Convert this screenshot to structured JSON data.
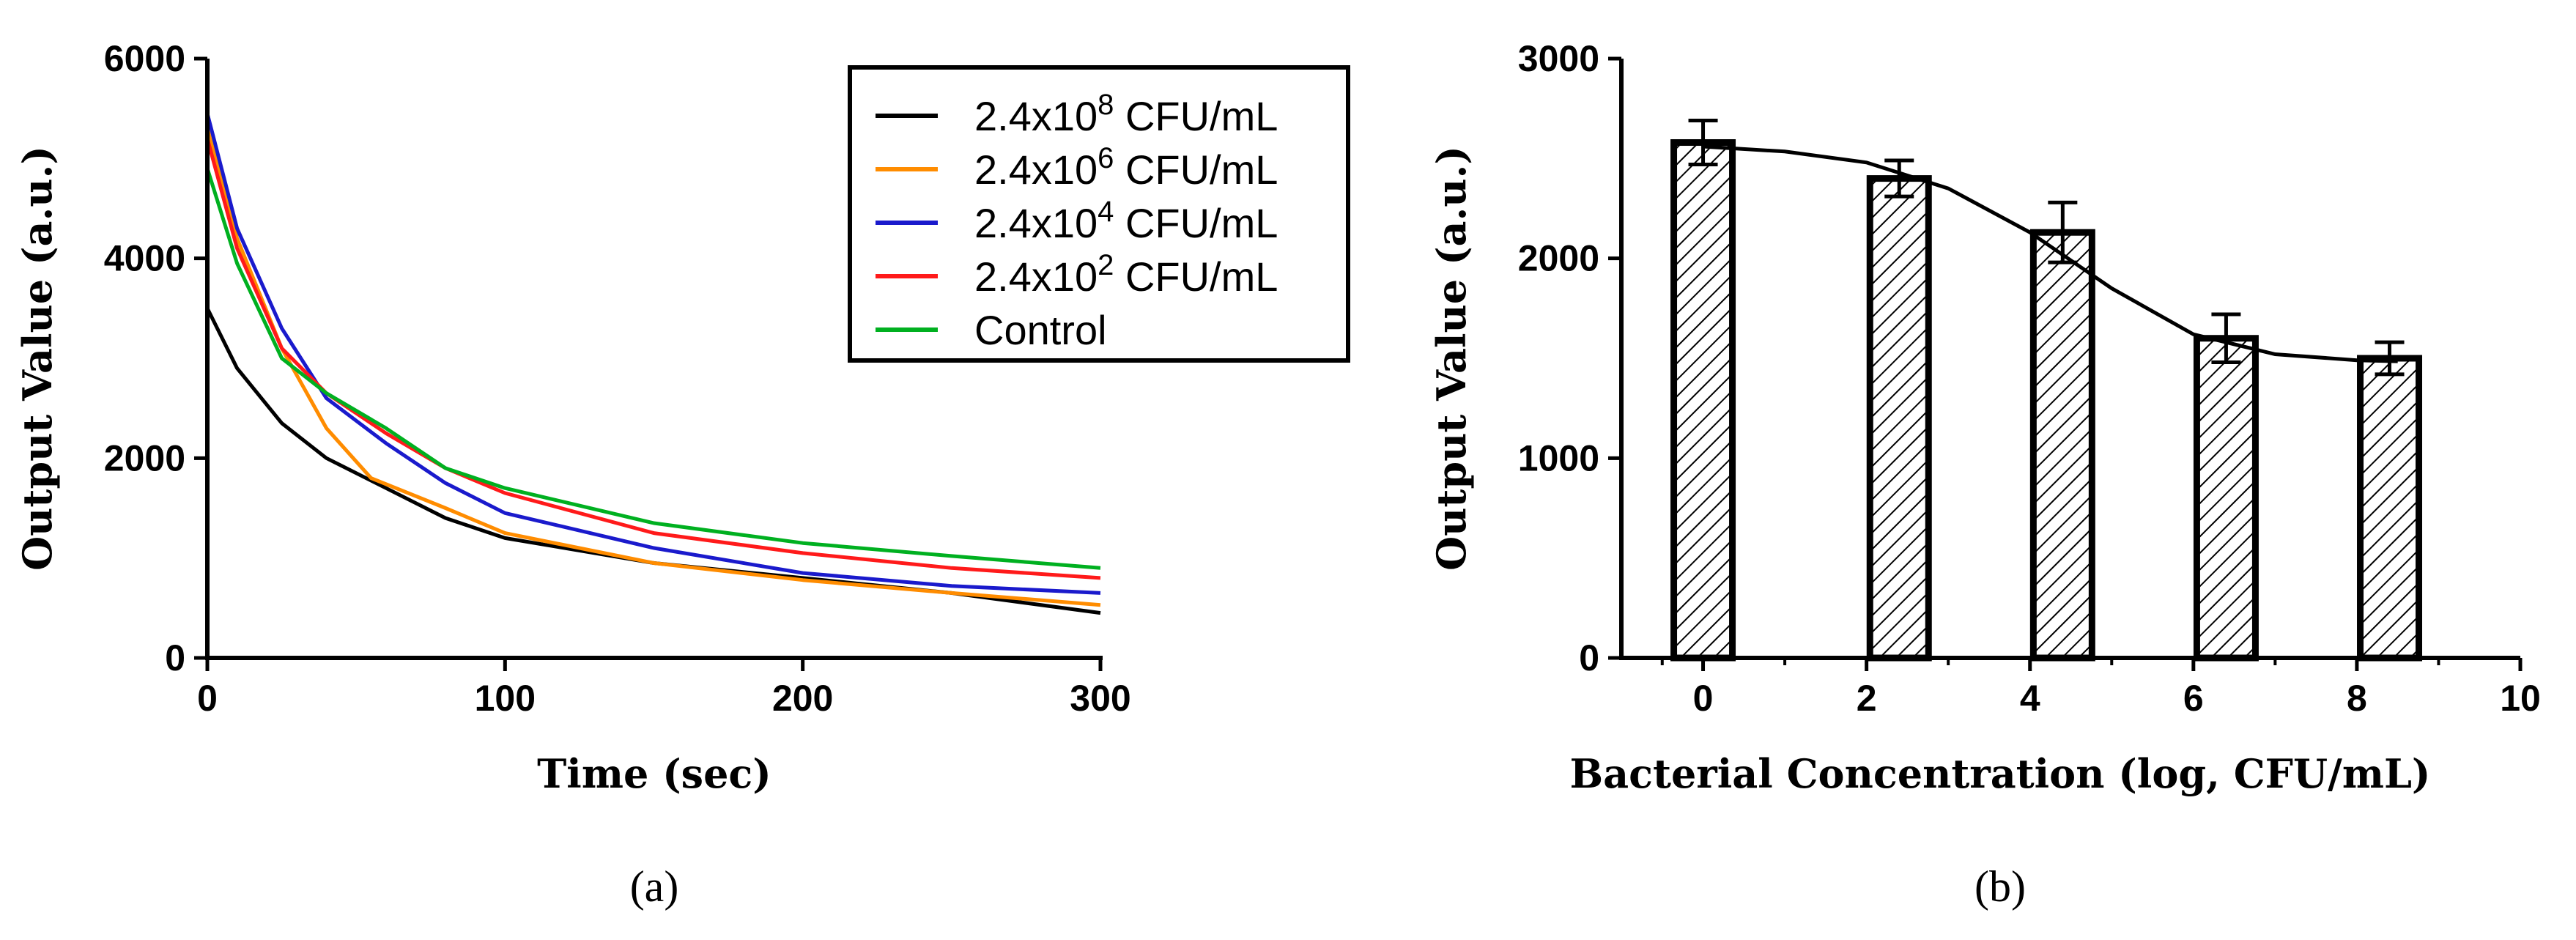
{
  "panels": [
    {
      "label": "(a)"
    },
    {
      "label": "(b)"
    }
  ],
  "chart_data": [
    {
      "type": "line",
      "xlabel": "Time (sec)",
      "ylabel": "Output Value (a.u.)",
      "xlim": [
        0,
        300
      ],
      "ylim": [
        0,
        6000
      ],
      "xticks": [
        0,
        100,
        200,
        300
      ],
      "yticks": [
        0,
        2000,
        4000,
        6000
      ],
      "x_tick_labels": [
        "0",
        "100",
        "200",
        "300"
      ],
      "y_tick_labels": [
        "0",
        "2000",
        "4000",
        "6000"
      ],
      "legend_position": "top-right",
      "series": [
        {
          "name": "2.4x10^8 CFU/mL",
          "name_base": "2.4x10",
          "name_exp": "8",
          "name_unit": " CFU/mL",
          "color": "#000000",
          "x": [
            0,
            10,
            25,
            40,
            60,
            80,
            100,
            150,
            200,
            250,
            300
          ],
          "y": [
            3500,
            2900,
            2350,
            2000,
            1700,
            1400,
            1200,
            950,
            800,
            650,
            450
          ]
        },
        {
          "name": "2.4x10^6 CFU/mL",
          "name_base": "2.4x10",
          "name_exp": "6",
          "name_unit": " CFU/mL",
          "color": "#ff8c00",
          "x": [
            0,
            10,
            25,
            40,
            55,
            80,
            100,
            150,
            200,
            250,
            300
          ],
          "y": [
            5300,
            4200,
            3100,
            2300,
            1800,
            1500,
            1250,
            950,
            780,
            650,
            530
          ]
        },
        {
          "name": "2.4x10^4 CFU/mL",
          "name_base": "2.4x10",
          "name_exp": "4",
          "name_unit": " CFU/mL",
          "color": "#1a1acc",
          "x": [
            0,
            10,
            25,
            40,
            60,
            80,
            100,
            150,
            200,
            250,
            300
          ],
          "y": [
            5450,
            4300,
            3300,
            2600,
            2150,
            1750,
            1450,
            1100,
            850,
            720,
            650
          ]
        },
        {
          "name": "2.4x10^2 CFU/mL",
          "name_base": "2.4x10",
          "name_exp": "2",
          "name_unit": " CFU/mL",
          "color": "#ff1a1a",
          "x": [
            0,
            10,
            25,
            40,
            60,
            80,
            100,
            150,
            200,
            250,
            300
          ],
          "y": [
            5200,
            4100,
            3100,
            2650,
            2250,
            1900,
            1650,
            1250,
            1050,
            900,
            800
          ]
        },
        {
          "name": "Control",
          "name_base": "Control",
          "name_exp": "",
          "name_unit": "",
          "color": "#00b020",
          "x": [
            0,
            10,
            25,
            40,
            60,
            80,
            100,
            150,
            200,
            250,
            300
          ],
          "y": [
            4900,
            3950,
            3000,
            2650,
            2300,
            1900,
            1700,
            1350,
            1150,
            1020,
            900
          ]
        }
      ]
    },
    {
      "type": "bar",
      "xlabel": "Bacterial Concentration (log, CFU/mL)",
      "ylabel": "Output Value (a.u.)",
      "xlim": [
        -1,
        10
      ],
      "ylim": [
        0,
        3000
      ],
      "xticks": [
        0,
        2,
        4,
        6,
        8,
        10
      ],
      "yticks": [
        0,
        1000,
        2000,
        3000
      ],
      "x_tick_labels": [
        "0",
        "2",
        "4",
        "6",
        "8",
        "10"
      ],
      "y_tick_labels": [
        "0",
        "1000",
        "2000",
        "3000"
      ],
      "bar_fill": "diagonal hatch",
      "bars": [
        {
          "x": 0.0,
          "value": 2580,
          "error": 110
        },
        {
          "x": 2.4,
          "value": 2400,
          "error": 90
        },
        {
          "x": 4.4,
          "value": 2130,
          "error": 150
        },
        {
          "x": 6.4,
          "value": 1600,
          "error": 120
        },
        {
          "x": 8.4,
          "value": 1500,
          "error": 80
        }
      ],
      "fit_curve": {
        "type": "sigmoid",
        "x": [
          0,
          1,
          2,
          3,
          4,
          5,
          6,
          7,
          8,
          8.5
        ],
        "y": [
          2560,
          2535,
          2480,
          2350,
          2130,
          1850,
          1620,
          1520,
          1490,
          1485
        ]
      }
    }
  ]
}
